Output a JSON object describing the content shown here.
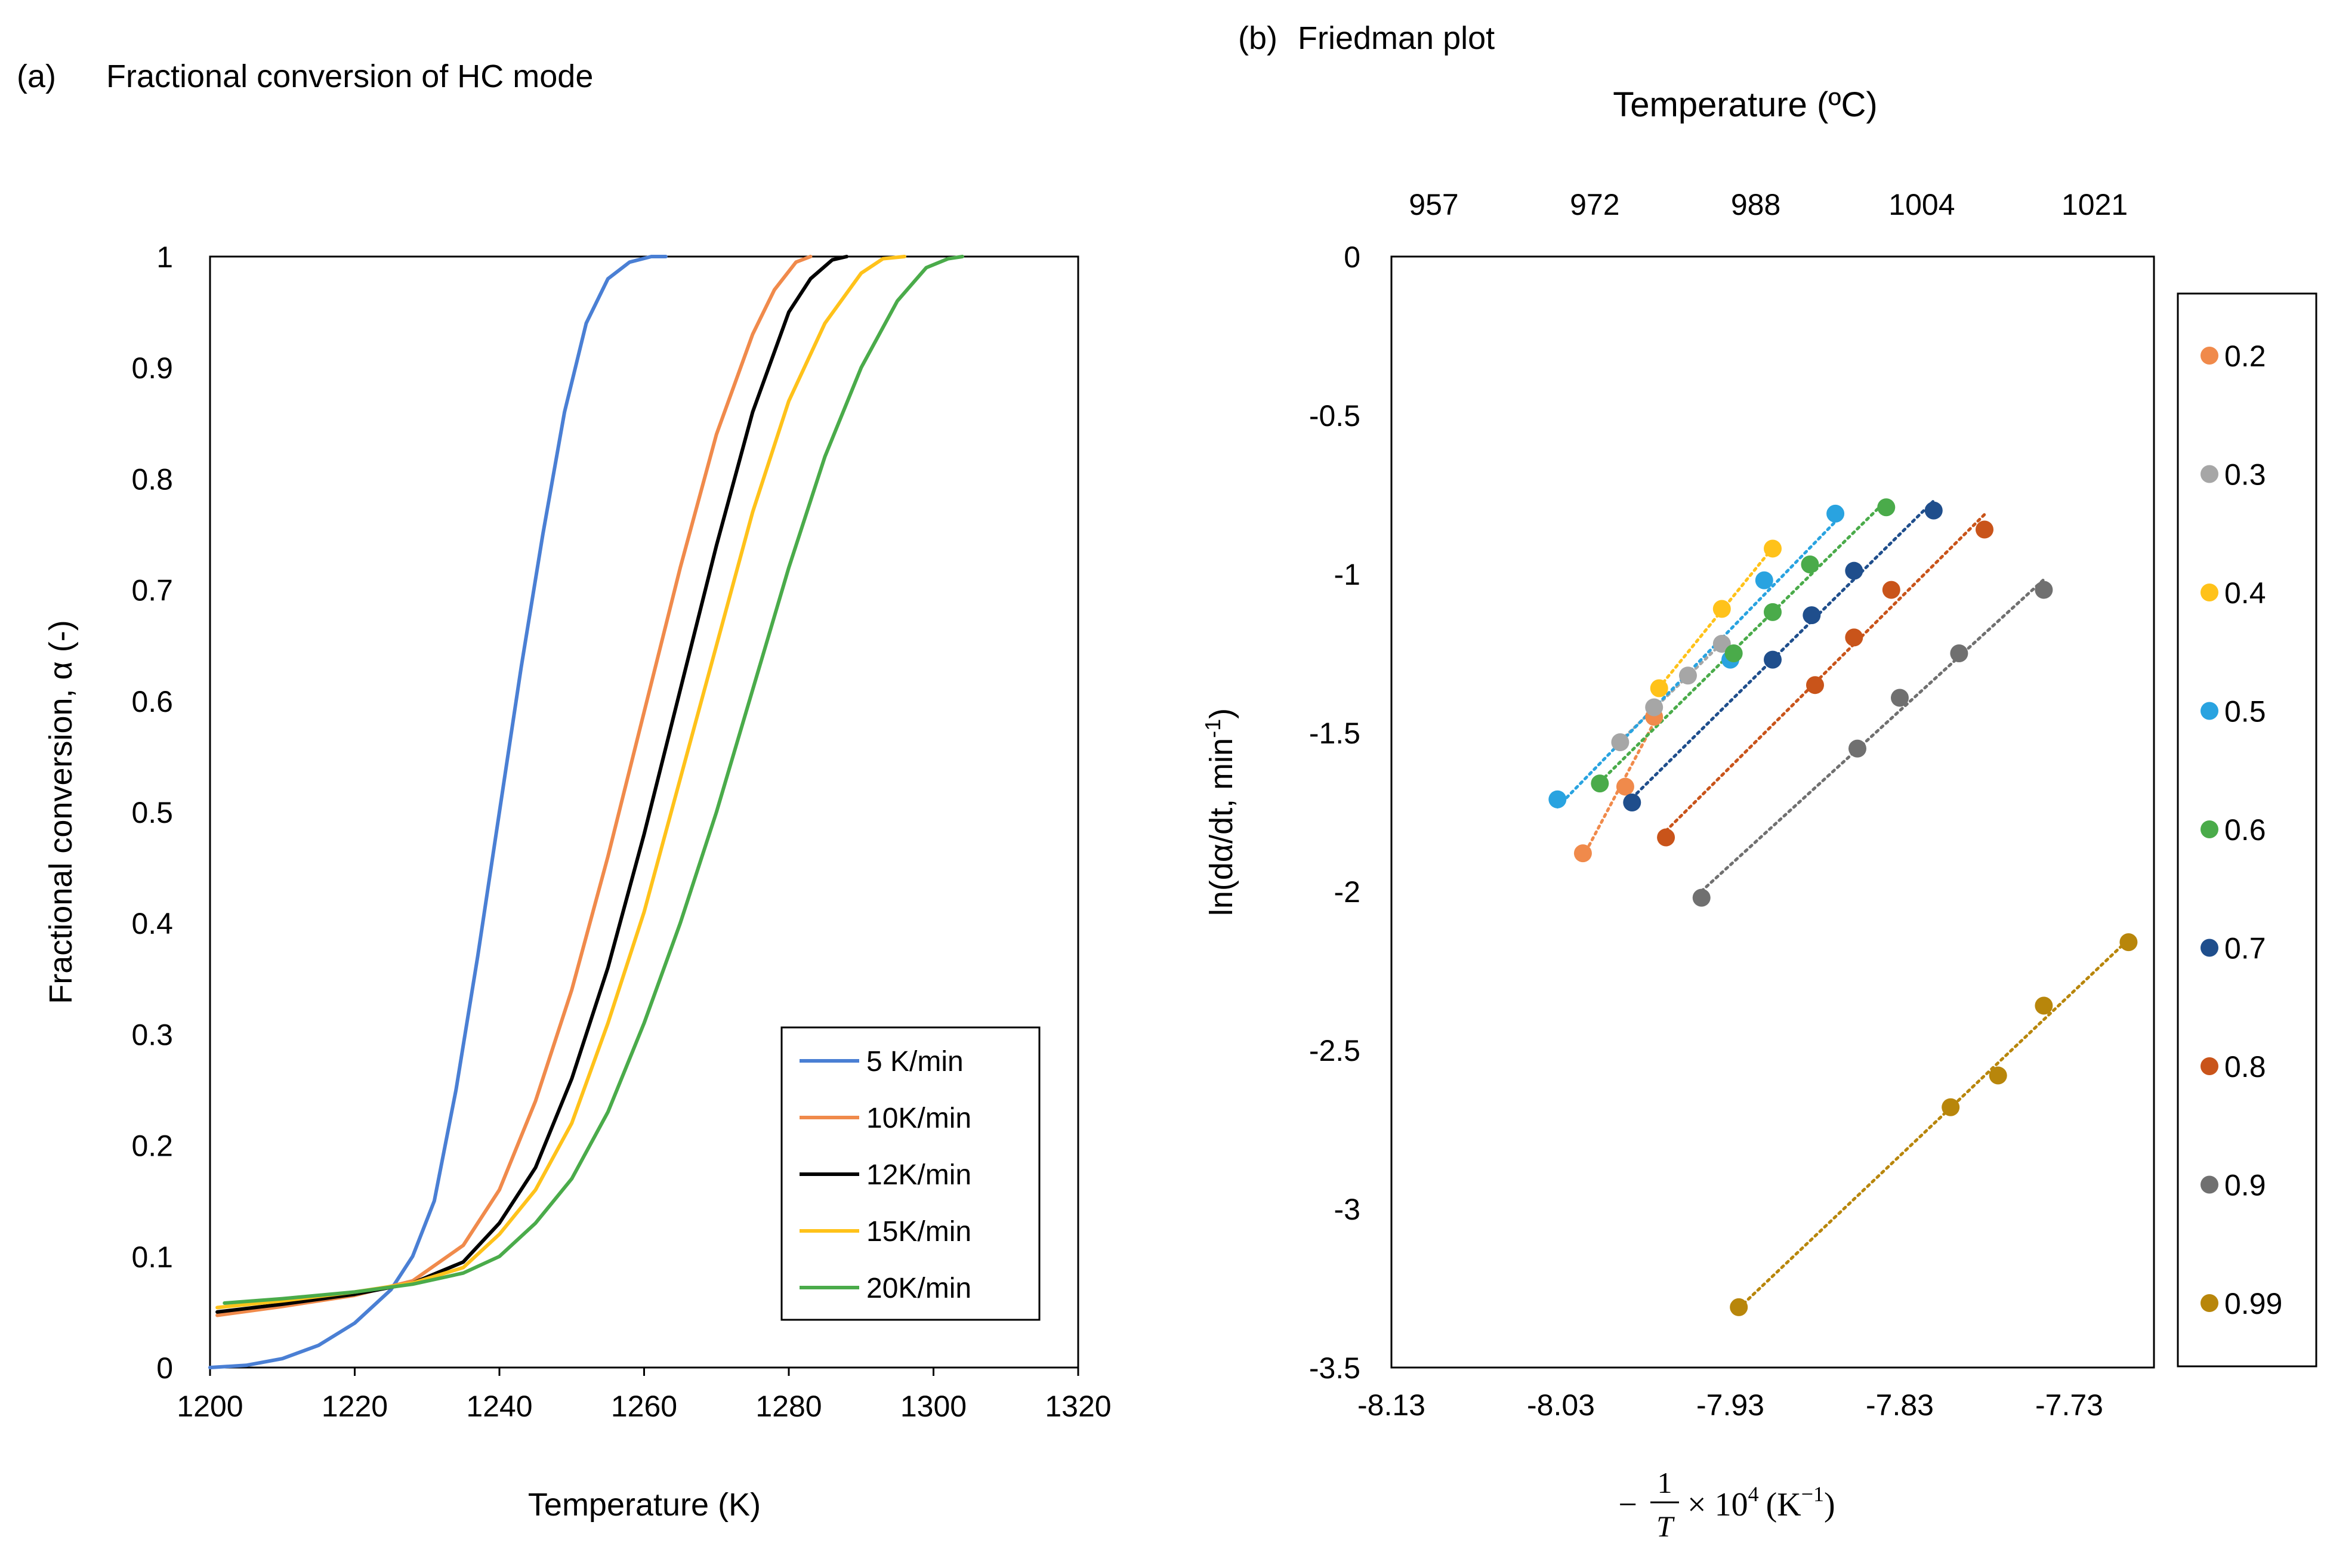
{
  "chart_data": [
    {
      "id": "a",
      "type": "line",
      "panel_label": "(a)",
      "title": "Fractional conversion of HC mode",
      "xlabel": "Temperature (K)",
      "ylabel": "Fractional conversion, α (-)",
      "xlim": [
        1200,
        1320
      ],
      "ylim": [
        0,
        1
      ],
      "xticks": [
        1200,
        1220,
        1240,
        1260,
        1280,
        1300,
        1320
      ],
      "yticks": [
        0,
        0.1,
        0.2,
        0.3,
        0.4,
        0.5,
        0.6,
        0.7,
        0.8,
        0.9,
        1
      ],
      "xtick_labels": [
        "1200",
        "1220",
        "1240",
        "1260",
        "1280",
        "1300",
        "1320"
      ],
      "ytick_labels": [
        "0",
        "0.1",
        "0.2",
        "0.3",
        "0.4",
        "0.5",
        "0.6",
        "0.7",
        "0.8",
        "0.9",
        "1"
      ],
      "grid": false,
      "legend_position": "bottom-right",
      "series": [
        {
          "name": "5 K/min",
          "color": "#4a7fd4",
          "x": [
            1200,
            1205,
            1210,
            1215,
            1220,
            1225,
            1228,
            1231,
            1234,
            1237,
            1240,
            1243,
            1246,
            1249,
            1252,
            1255,
            1258,
            1261,
            1263
          ],
          "y": [
            0.0,
            0.002,
            0.008,
            0.02,
            0.04,
            0.07,
            0.1,
            0.15,
            0.25,
            0.37,
            0.5,
            0.63,
            0.75,
            0.86,
            0.94,
            0.98,
            0.995,
            1.0,
            1.0
          ]
        },
        {
          "name": "10K/min",
          "color": "#f08a4b",
          "x": [
            1201,
            1210,
            1220,
            1228,
            1235,
            1240,
            1245,
            1250,
            1255,
            1260,
            1265,
            1270,
            1275,
            1278,
            1281,
            1283
          ],
          "y": [
            0.047,
            0.055,
            0.065,
            0.078,
            0.11,
            0.16,
            0.24,
            0.34,
            0.46,
            0.59,
            0.72,
            0.84,
            0.93,
            0.97,
            0.995,
            1.0
          ]
        },
        {
          "name": "12K/min",
          "color": "#000000",
          "x": [
            1201,
            1210,
            1220,
            1228,
            1235,
            1240,
            1245,
            1250,
            1255,
            1260,
            1265,
            1270,
            1275,
            1280,
            1283,
            1286,
            1288
          ],
          "y": [
            0.05,
            0.057,
            0.066,
            0.076,
            0.095,
            0.13,
            0.18,
            0.26,
            0.36,
            0.48,
            0.61,
            0.74,
            0.86,
            0.95,
            0.98,
            0.997,
            1.0
          ]
        },
        {
          "name": "15K/min",
          "color": "#ffc21a",
          "x": [
            1201,
            1210,
            1220,
            1228,
            1235,
            1240,
            1245,
            1250,
            1255,
            1260,
            1265,
            1270,
            1275,
            1280,
            1285,
            1290,
            1293,
            1296
          ],
          "y": [
            0.054,
            0.06,
            0.068,
            0.076,
            0.09,
            0.12,
            0.16,
            0.22,
            0.31,
            0.41,
            0.53,
            0.65,
            0.77,
            0.87,
            0.94,
            0.985,
            0.998,
            1.0
          ]
        },
        {
          "name": "20K/min",
          "color": "#4aab4a",
          "x": [
            1202,
            1210,
            1220,
            1228,
            1235,
            1240,
            1245,
            1250,
            1255,
            1260,
            1265,
            1270,
            1275,
            1280,
            1285,
            1290,
            1295,
            1299,
            1302,
            1304
          ],
          "y": [
            0.058,
            0.062,
            0.068,
            0.075,
            0.085,
            0.1,
            0.13,
            0.17,
            0.23,
            0.31,
            0.4,
            0.5,
            0.61,
            0.72,
            0.82,
            0.9,
            0.96,
            0.99,
            0.998,
            1.0
          ]
        }
      ]
    },
    {
      "id": "b",
      "type": "scatter",
      "panel_label": "(b)",
      "title": "Friedman plot",
      "top_axis_label": "Temperature (ºC)",
      "top_ticks": [
        {
          "x": -8.105,
          "label": "957"
        },
        {
          "x": -8.01,
          "label": "972"
        },
        {
          "x": -7.915,
          "label": "988"
        },
        {
          "x": -7.817,
          "label": "1004"
        },
        {
          "x": -7.715,
          "label": "1021"
        }
      ],
      "xlabel_minus": "−",
      "xlabel_frac_num": "1",
      "xlabel_frac_den": "T",
      "xlabel_times": "× 10",
      "xlabel_exp": "4",
      "xlabel_unit": "(K",
      "xlabel_unit_exp": "−1",
      "xlabel_unit_close": ")",
      "ylabel_prefix": "ln(dα/dt, min",
      "ylabel_exp": "-1",
      "ylabel_suffix": ")",
      "xlim": [
        -8.13,
        -7.68
      ],
      "ylim": [
        -3.5,
        0
      ],
      "xticks": [
        -8.13,
        -8.03,
        -7.93,
        -7.83,
        -7.73
      ],
      "xtick_labels": [
        "-8.13",
        "-8.03",
        "-7.93",
        "-7.83",
        "-7.73"
      ],
      "yticks": [
        0,
        -0.5,
        -1,
        -1.5,
        -2,
        -2.5,
        -3,
        -3.5
      ],
      "ytick_labels": [
        "0",
        "-0.5",
        "-1",
        "-1.5",
        "-2",
        "-2.5",
        "-3",
        "-3.5"
      ],
      "grid": false,
      "legend_position": "right",
      "trendline": "dotted linear fit per series",
      "series": [
        {
          "name": "0.2",
          "color": "#f08a4b",
          "x": [
            -8.017,
            -7.992,
            -7.975
          ],
          "y": [
            -1.88,
            -1.67,
            -1.45
          ]
        },
        {
          "name": "0.3",
          "color": "#a6a6a6",
          "x": [
            -7.995,
            -7.975,
            -7.955,
            -7.935
          ],
          "y": [
            -1.53,
            -1.42,
            -1.32,
            -1.22
          ]
        },
        {
          "name": "0.4",
          "color": "#ffc21a",
          "x": [
            -7.972,
            -7.935,
            -7.905
          ],
          "y": [
            -1.36,
            -1.11,
            -0.92
          ]
        },
        {
          "name": "0.5",
          "color": "#29a3e0",
          "x": [
            -8.032,
            -7.93,
            -7.91,
            -7.868
          ],
          "y": [
            -1.71,
            -1.27,
            -1.02,
            -0.81
          ]
        },
        {
          "name": "0.6",
          "color": "#4aab4a",
          "x": [
            -8.007,
            -7.928,
            -7.905,
            -7.883,
            -7.838
          ],
          "y": [
            -1.66,
            -1.25,
            -1.12,
            -0.97,
            -0.79
          ]
        },
        {
          "name": "0.7",
          "color": "#1f4e8c",
          "x": [
            -7.988,
            -7.905,
            -7.882,
            -7.857,
            -7.81
          ],
          "y": [
            -1.72,
            -1.27,
            -1.13,
            -0.99,
            -0.8
          ]
        },
        {
          "name": "0.8",
          "color": "#c9541a",
          "x": [
            -7.968,
            -7.88,
            -7.857,
            -7.835,
            -7.78
          ],
          "y": [
            -1.83,
            -1.35,
            -1.2,
            -1.05,
            -0.86
          ]
        },
        {
          "name": "0.9",
          "color": "#707070",
          "x": [
            -7.947,
            -7.855,
            -7.83,
            -7.795,
            -7.745
          ],
          "y": [
            -2.02,
            -1.55,
            -1.39,
            -1.25,
            -1.05
          ]
        },
        {
          "name": "0.99",
          "color": "#b8860b",
          "x": [
            -7.925,
            -7.8,
            -7.772,
            -7.745,
            -7.695
          ],
          "y": [
            -3.31,
            -2.68,
            -2.58,
            -2.36,
            -2.16
          ]
        }
      ]
    }
  ]
}
